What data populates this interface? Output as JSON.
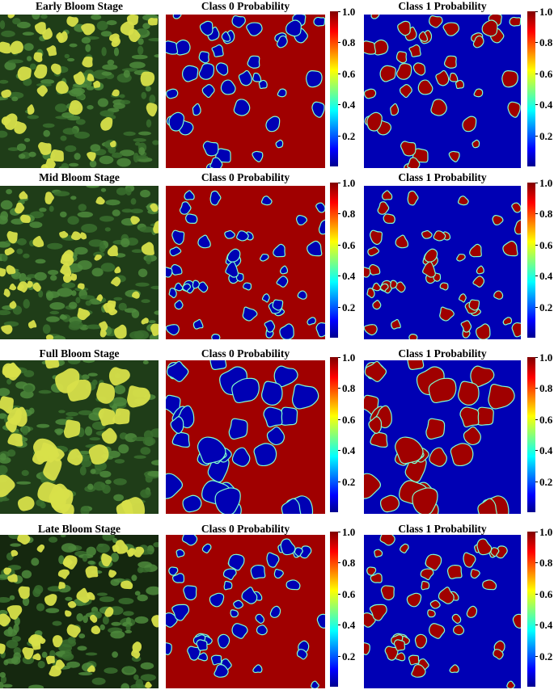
{
  "figure": {
    "rows": [
      {
        "photo_title": "Early Bloom Stage",
        "class0_title": "Class 0 Probability",
        "class1_title": "Class 1 Probability"
      },
      {
        "photo_title": "Mid Bloom Stage",
        "class0_title": "Class 0 Probability",
        "class1_title": "Class 1 Probability"
      },
      {
        "photo_title": "Full Bloom Stage",
        "class0_title": "Class 0 Probability",
        "class1_title": "Class 1 Probability"
      },
      {
        "photo_title": "Late Bloom Stage",
        "class0_title": "Class 0 Probability",
        "class1_title": "Class 1 Probability"
      }
    ],
    "colorbar_ticks": [
      "1.0",
      "0.8",
      "0.6",
      "0.4",
      "0.2"
    ],
    "colormap": "jet",
    "colors": {
      "class_high": "#a00000",
      "class_low": "#0000b4",
      "foliage_light": "#4d8a3c",
      "foliage_dark": "#1f3d18",
      "flower": "#d8e04a"
    }
  }
}
